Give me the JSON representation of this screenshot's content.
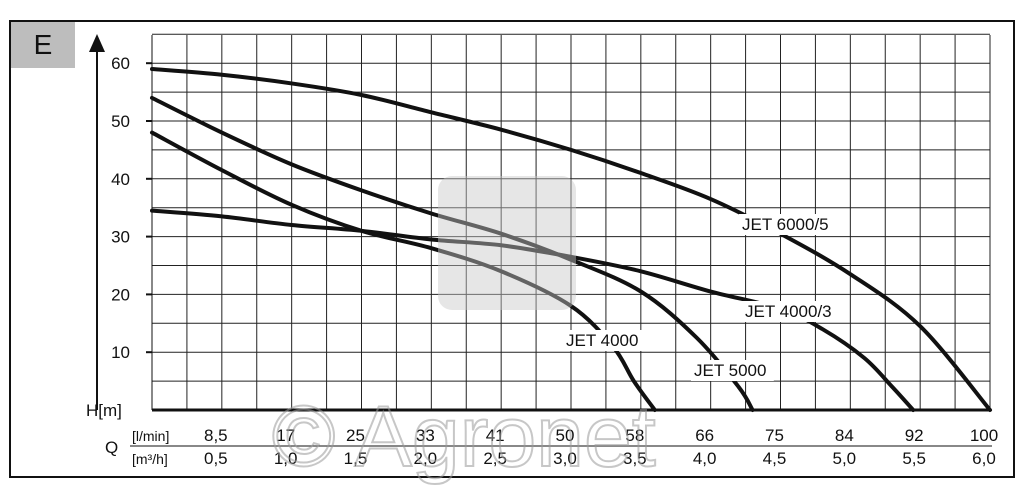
{
  "panel": {
    "label": "E"
  },
  "watermark": {
    "text": "© Agronet"
  },
  "chart_data": {
    "type": "line",
    "title": "",
    "ylabel": "H[m]",
    "xlabel": "Q",
    "ylim": [
      0,
      65
    ],
    "y_ticks": [
      10,
      20,
      30,
      40,
      50,
      60
    ],
    "x_unit_lmin": "[l/min]",
    "x_unit_m3h": "[m³/h]",
    "x_ticks_lmin": [
      "8,5",
      "17",
      "25",
      "33",
      "41",
      "50",
      "58",
      "66",
      "75",
      "84",
      "92",
      "100"
    ],
    "x_ticks_m3h": [
      "0,5",
      "1,0",
      "1,5",
      "2,0",
      "2,5",
      "3,0",
      "3,5",
      "4,0",
      "4,5",
      "5,0",
      "5,5",
      "6,0"
    ],
    "xlim_m3h": [
      0,
      6.0
    ],
    "grid": true,
    "series": [
      {
        "name": "JET 6000/5",
        "x": [
          0,
          0.5,
          1.0,
          1.5,
          2.0,
          2.5,
          3.0,
          3.5,
          4.0,
          4.5,
          5.0,
          5.5,
          6.0
        ],
        "y": [
          59,
          58,
          56.5,
          54.5,
          51.5,
          48.5,
          45,
          41,
          36.5,
          30.5,
          23.5,
          14.5,
          0
        ]
      },
      {
        "name": "JET 4000/3",
        "x": [
          0,
          0.5,
          1.0,
          1.5,
          2.0,
          2.5,
          3.0,
          3.5,
          4.0,
          4.5,
          4.8,
          5.1,
          5.3,
          5.45
        ],
        "y": [
          34.5,
          33.5,
          32,
          31,
          29.5,
          28.5,
          26.5,
          24,
          20.5,
          17.5,
          14,
          9,
          4,
          0
        ]
      },
      {
        "name": "JET 5000",
        "x": [
          0,
          0.5,
          1.0,
          1.5,
          2.0,
          2.5,
          3.0,
          3.5,
          3.9,
          4.2,
          4.3
        ],
        "y": [
          54,
          48,
          42.5,
          38,
          34,
          30.5,
          26,
          20.5,
          12.5,
          4,
          0
        ]
      },
      {
        "name": "JET 4000",
        "x": [
          0,
          0.5,
          1.0,
          1.5,
          2.0,
          2.5,
          3.0,
          3.3,
          3.45,
          3.6
        ],
        "y": [
          48,
          41.5,
          35.5,
          31,
          28,
          24,
          18,
          11,
          5,
          0
        ]
      }
    ]
  }
}
